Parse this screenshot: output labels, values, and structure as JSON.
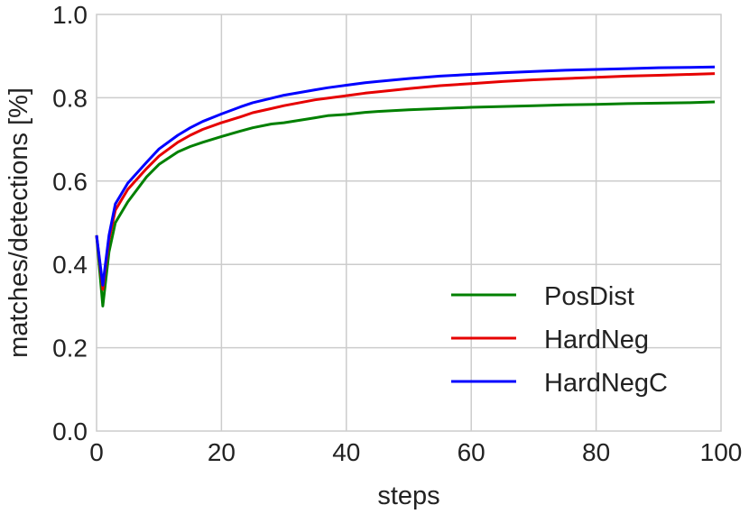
{
  "chart_data": {
    "type": "line",
    "xlabel": "steps",
    "ylabel": "matches/detections [%]",
    "xlim": [
      0,
      100
    ],
    "ylim": [
      0.0,
      1.0
    ],
    "xticks": [
      "0",
      "20",
      "40",
      "60",
      "80",
      "100"
    ],
    "yticks": [
      "0.0",
      "0.2",
      "0.4",
      "0.6",
      "0.8",
      "1.0"
    ],
    "grid": true,
    "legend_position": "lower-right",
    "series": [
      {
        "name": "PosDist",
        "color": "#008000",
        "x": [
          0,
          1,
          2,
          3,
          5,
          8,
          10,
          13,
          15,
          17,
          20,
          23,
          25,
          28,
          30,
          35,
          37,
          40,
          43,
          45,
          50,
          55,
          60,
          65,
          70,
          75,
          80,
          85,
          90,
          95,
          99
        ],
        "y": [
          0.47,
          0.3,
          0.43,
          0.5,
          0.55,
          0.61,
          0.64,
          0.67,
          0.683,
          0.693,
          0.707,
          0.72,
          0.728,
          0.737,
          0.74,
          0.752,
          0.757,
          0.76,
          0.765,
          0.767,
          0.771,
          0.774,
          0.777,
          0.779,
          0.781,
          0.783,
          0.784,
          0.786,
          0.787,
          0.788,
          0.79
        ]
      },
      {
        "name": "HardNeg",
        "color": "#e60000",
        "x": [
          0,
          1,
          2,
          3,
          5,
          8,
          10,
          13,
          15,
          17,
          20,
          23,
          25,
          28,
          30,
          35,
          37,
          40,
          43,
          45,
          50,
          55,
          60,
          65,
          70,
          75,
          80,
          85,
          90,
          95,
          99
        ],
        "y": [
          0.47,
          0.34,
          0.46,
          0.53,
          0.58,
          0.63,
          0.66,
          0.693,
          0.71,
          0.724,
          0.74,
          0.754,
          0.764,
          0.774,
          0.781,
          0.795,
          0.799,
          0.805,
          0.811,
          0.814,
          0.822,
          0.829,
          0.834,
          0.839,
          0.843,
          0.846,
          0.849,
          0.852,
          0.854,
          0.856,
          0.858
        ]
      },
      {
        "name": "HardNegC",
        "color": "#0000ff",
        "x": [
          0,
          1,
          2,
          3,
          5,
          8,
          10,
          13,
          15,
          17,
          20,
          23,
          25,
          28,
          30,
          35,
          37,
          40,
          43,
          45,
          50,
          55,
          60,
          65,
          70,
          75,
          80,
          85,
          90,
          95,
          99
        ],
        "y": [
          0.47,
          0.35,
          0.47,
          0.545,
          0.595,
          0.645,
          0.677,
          0.71,
          0.728,
          0.743,
          0.761,
          0.778,
          0.788,
          0.799,
          0.806,
          0.819,
          0.824,
          0.83,
          0.836,
          0.839,
          0.846,
          0.852,
          0.856,
          0.86,
          0.863,
          0.866,
          0.868,
          0.87,
          0.872,
          0.873,
          0.874
        ]
      }
    ]
  }
}
